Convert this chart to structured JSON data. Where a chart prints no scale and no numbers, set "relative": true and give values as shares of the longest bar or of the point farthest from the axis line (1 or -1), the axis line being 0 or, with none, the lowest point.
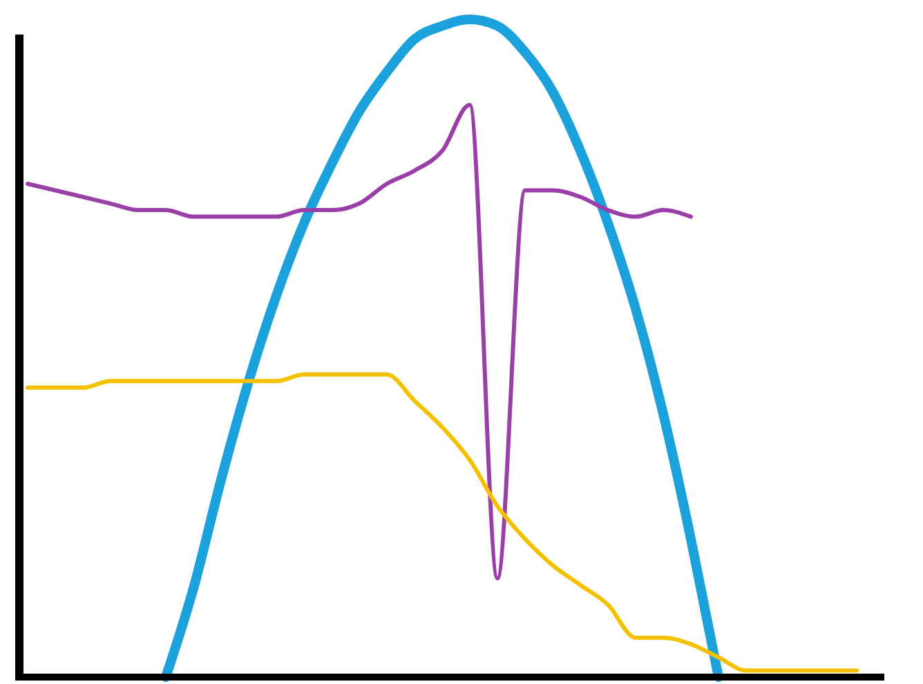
{
  "chart_data": {
    "type": "line",
    "relative": true,
    "categories": [
      null,
      null,
      null,
      null,
      null,
      null,
      null,
      null,
      null,
      null,
      null,
      null,
      null,
      null,
      null,
      null,
      null,
      null,
      null,
      null,
      null,
      null,
      null,
      null,
      null,
      null,
      null,
      null,
      null,
      null,
      null,
      null
    ],
    "series": [
      {
        "color": "#1ba1dc",
        "values": [
          null,
          null,
          null,
          null,
          null,
          0,
          0.135,
          0.3,
          0.45,
          0.58,
          0.69,
          0.78,
          0.86,
          0.92,
          0.97,
          0.99,
          1,
          0.99,
          0.95,
          0.89,
          0.8,
          0.69,
          0.56,
          0.4,
          0.21,
          0,
          null,
          null,
          null,
          null,
          null,
          null
        ]
      },
      {
        "color": "#9b3fa8",
        "values": [
          0.75,
          0.74,
          0.73,
          0.72,
          0.71,
          0.71,
          0.7,
          0.7,
          0.7,
          0.7,
          0.71,
          0.71,
          0.72,
          0.75,
          0.77,
          0.8,
          0.87,
          0.15,
          0.74,
          0.74,
          0.73,
          0.71,
          0.7,
          0.71,
          0.7,
          null,
          null,
          null,
          null,
          null,
          null,
          null
        ]
      },
      {
        "color": "#f5c000",
        "values": [
          0.44,
          0.44,
          0.44,
          0.45,
          0.45,
          0.45,
          0.45,
          0.45,
          0.45,
          0.45,
          0.46,
          0.46,
          0.46,
          0.46,
          0.42,
          0.38,
          0.33,
          0.26,
          0.21,
          0.17,
          0.14,
          0.11,
          0.06,
          0.06,
          0.05,
          0.03,
          0.01,
          0.01,
          0.01,
          0.01,
          0.01,
          null
        ]
      }
    ]
  }
}
